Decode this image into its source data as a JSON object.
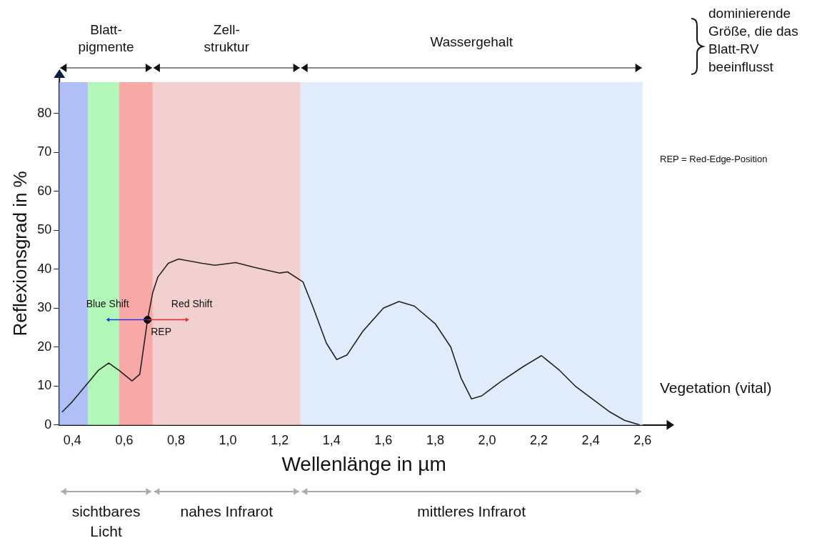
{
  "chart_data": {
    "type": "line",
    "xlabel": "Wellenlänge in µm",
    "ylabel": "Reflexionsgrad in %",
    "xlim": [
      0.35,
      2.7
    ],
    "ylim": [
      0,
      88
    ],
    "xticks": [
      {
        "value": 0.4,
        "label": "0,4"
      },
      {
        "value": 0.6,
        "label": "0,6"
      },
      {
        "value": 0.8,
        "label": "0,8"
      },
      {
        "value": 1.0,
        "label": "1,0"
      },
      {
        "value": 1.2,
        "label": "1,2"
      },
      {
        "value": 1.4,
        "label": "1,4"
      },
      {
        "value": 1.6,
        "label": "1,6"
      },
      {
        "value": 1.8,
        "label": "1,8"
      },
      {
        "value": 2.0,
        "label": "2,0"
      },
      {
        "value": 2.2,
        "label": "2,2"
      },
      {
        "value": 2.4,
        "label": "2,4"
      },
      {
        "value": 2.6,
        "label": "2,6"
      }
    ],
    "yticks": [
      0,
      10,
      20,
      30,
      40,
      50,
      60,
      70,
      80
    ],
    "grid": false,
    "legend": false,
    "marker": "none",
    "line_style": "solid",
    "series": [
      {
        "name": "Vegetation (vital)",
        "color": "#222222",
        "x": [
          0.36,
          0.4,
          0.45,
          0.5,
          0.54,
          0.58,
          0.63,
          0.66,
          0.69,
          0.71,
          0.73,
          0.77,
          0.81,
          0.9,
          0.95,
          1.03,
          1.1,
          1.2,
          1.23,
          1.29,
          1.33,
          1.38,
          1.42,
          1.46,
          1.52,
          1.6,
          1.66,
          1.72,
          1.8,
          1.86,
          1.9,
          1.94,
          1.98,
          2.05,
          2.14,
          2.21,
          2.28,
          2.34,
          2.4,
          2.47,
          2.53,
          2.59
        ],
        "values": [
          3.3,
          6,
          10,
          14,
          15.9,
          14,
          11.3,
          13,
          27,
          34,
          38,
          41.5,
          42.6,
          41.5,
          41,
          41.7,
          40.5,
          39,
          39.3,
          36.7,
          30,
          21,
          16.8,
          18,
          24,
          30,
          31.7,
          30.5,
          26,
          20,
          12,
          6.7,
          7.5,
          11,
          15,
          17.8,
          14,
          10,
          7,
          3.5,
          1.2,
          0
        ]
      },
      {
        "type": "scatter",
        "marker": "circle",
        "color": "#000000",
        "x": [
          0.69
        ],
        "values": [
          27
        ]
      }
    ],
    "bands": [
      {
        "axis": "x",
        "from": 0.35,
        "to": 0.46,
        "color": "#b0bff5"
      },
      {
        "axis": "x",
        "from": 0.46,
        "to": 0.58,
        "color": "#b1f7b8"
      },
      {
        "axis": "x",
        "from": 0.58,
        "to": 0.71,
        "color": "#f9a8a8"
      },
      {
        "axis": "x",
        "from": 0.71,
        "to": 1.28,
        "color": "#f2d0d0"
      },
      {
        "axis": "x",
        "from": 1.28,
        "to": 2.6,
        "color": "#e0ebfb"
      }
    ],
    "annotations": [
      "Blatt-pigmente",
      "Zell-struktur",
      "Wassergehalt",
      "dominierende Größe, die das Blatt-RV beeinflusst",
      "REP = Red-Edge-Position",
      "sichtbares Licht",
      "nahes Infrarot",
      "mittleres Infrarot",
      "Blue Shift",
      "Red Shift",
      "REP"
    ]
  }
}
